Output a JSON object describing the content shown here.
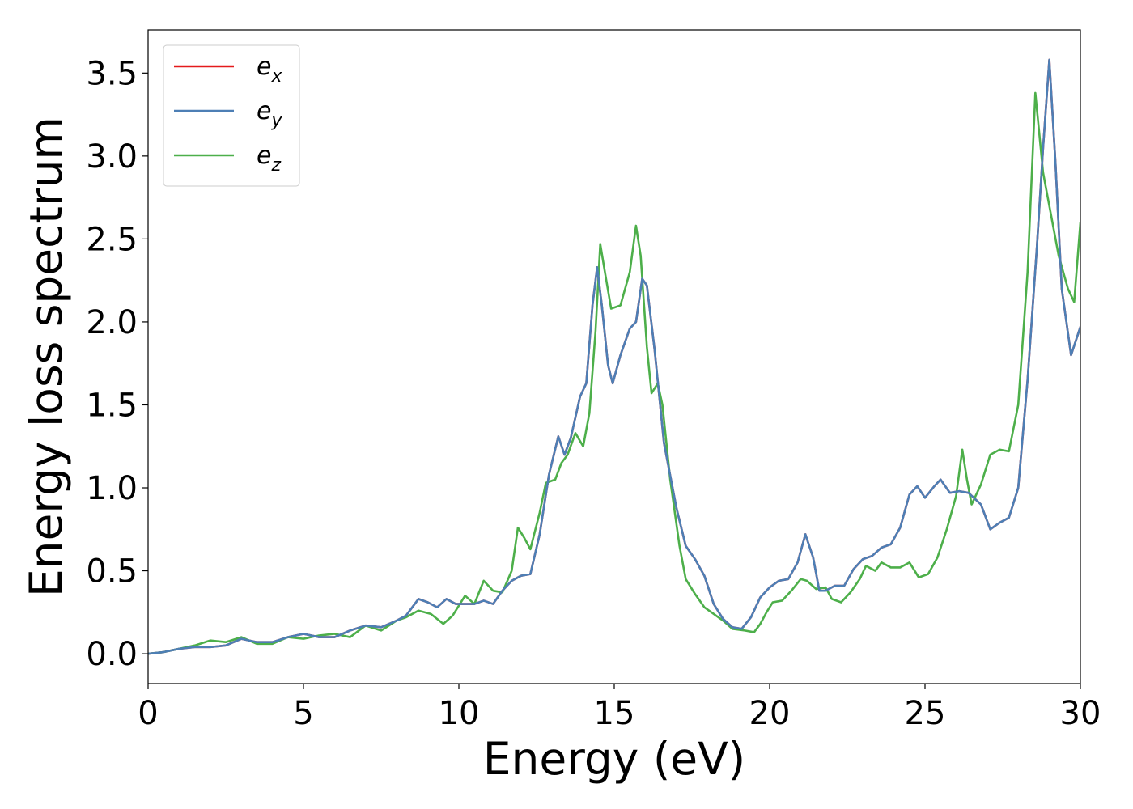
{
  "chart_data": {
    "type": "line",
    "xlabel": "Energy (eV)",
    "ylabel": "Energy loss spectrum",
    "xlim": [
      0,
      30
    ],
    "ylim": [
      -0.18,
      3.76
    ],
    "xticks": [
      "0",
      "5",
      "10",
      "15",
      "20",
      "25",
      "30"
    ],
    "yticks": [
      "0.0",
      "0.5",
      "1.0",
      "1.5",
      "2.0",
      "2.5",
      "3.0",
      "3.5"
    ],
    "grid": false,
    "legend": {
      "position": "top-left"
    },
    "series": [
      {
        "name": "e_x",
        "label_base": "e",
        "label_sub": "x",
        "color": "#e41a1c",
        "points": [
          [
            0,
            0
          ],
          [
            0.5,
            0.01
          ],
          [
            1,
            0.03
          ],
          [
            1.5,
            0.04
          ],
          [
            2,
            0.04
          ],
          [
            2.5,
            0.05
          ],
          [
            3,
            0.09
          ],
          [
            3.5,
            0.07
          ],
          [
            4,
            0.07
          ],
          [
            4.5,
            0.1
          ],
          [
            5,
            0.12
          ],
          [
            5.5,
            0.1
          ],
          [
            6,
            0.1
          ],
          [
            6.5,
            0.14
          ],
          [
            7,
            0.17
          ],
          [
            7.5,
            0.16
          ],
          [
            8,
            0.2
          ],
          [
            8.3,
            0.23
          ],
          [
            8.7,
            0.33
          ],
          [
            9,
            0.31
          ],
          [
            9.3,
            0.28
          ],
          [
            9.6,
            0.33
          ],
          [
            9.9,
            0.3
          ],
          [
            10.2,
            0.3
          ],
          [
            10.5,
            0.3
          ],
          [
            10.8,
            0.32
          ],
          [
            11.1,
            0.3
          ],
          [
            11.4,
            0.38
          ],
          [
            11.7,
            0.44
          ],
          [
            12,
            0.47
          ],
          [
            12.3,
            0.48
          ],
          [
            12.6,
            0.72
          ],
          [
            12.9,
            1.08
          ],
          [
            13.2,
            1.31
          ],
          [
            13.4,
            1.2
          ],
          [
            13.6,
            1.3
          ],
          [
            13.9,
            1.55
          ],
          [
            14.1,
            1.63
          ],
          [
            14.3,
            2.1
          ],
          [
            14.45,
            2.33
          ],
          [
            14.6,
            2.1
          ],
          [
            14.8,
            1.74
          ],
          [
            14.95,
            1.63
          ],
          [
            15.2,
            1.8
          ],
          [
            15.5,
            1.96
          ],
          [
            15.7,
            2.0
          ],
          [
            15.9,
            2.26
          ],
          [
            16.05,
            2.22
          ],
          [
            16.3,
            1.83
          ],
          [
            16.6,
            1.27
          ],
          [
            17,
            0.88
          ],
          [
            17.3,
            0.65
          ],
          [
            17.6,
            0.57
          ],
          [
            17.9,
            0.47
          ],
          [
            18.2,
            0.3
          ],
          [
            18.5,
            0.21
          ],
          [
            18.8,
            0.16
          ],
          [
            19.1,
            0.15
          ],
          [
            19.4,
            0.22
          ],
          [
            19.7,
            0.34
          ],
          [
            20,
            0.4
          ],
          [
            20.3,
            0.44
          ],
          [
            20.6,
            0.45
          ],
          [
            20.9,
            0.55
          ],
          [
            21.15,
            0.72
          ],
          [
            21.4,
            0.58
          ],
          [
            21.6,
            0.38
          ],
          [
            21.8,
            0.38
          ],
          [
            22.1,
            0.41
          ],
          [
            22.4,
            0.41
          ],
          [
            22.7,
            0.51
          ],
          [
            23,
            0.57
          ],
          [
            23.3,
            0.59
          ],
          [
            23.6,
            0.64
          ],
          [
            23.9,
            0.66
          ],
          [
            24.2,
            0.76
          ],
          [
            24.5,
            0.96
          ],
          [
            24.75,
            1.01
          ],
          [
            25,
            0.94
          ],
          [
            25.3,
            1.01
          ],
          [
            25.5,
            1.05
          ],
          [
            25.8,
            0.97
          ],
          [
            26.1,
            0.98
          ],
          [
            26.4,
            0.97
          ],
          [
            26.8,
            0.9
          ],
          [
            27.1,
            0.75
          ],
          [
            27.4,
            0.79
          ],
          [
            27.7,
            0.82
          ],
          [
            28,
            1.0
          ],
          [
            28.3,
            1.65
          ],
          [
            28.6,
            2.45
          ],
          [
            28.8,
            3.05
          ],
          [
            29,
            3.58
          ],
          [
            29.2,
            2.95
          ],
          [
            29.4,
            2.2
          ],
          [
            29.7,
            1.8
          ],
          [
            30,
            1.97
          ]
        ]
      },
      {
        "name": "e_y",
        "label_base": "e",
        "label_sub": "y",
        "color": "#4d7fb5",
        "points": [
          [
            0,
            0
          ],
          [
            0.5,
            0.01
          ],
          [
            1,
            0.03
          ],
          [
            1.5,
            0.04
          ],
          [
            2,
            0.04
          ],
          [
            2.5,
            0.05
          ],
          [
            3,
            0.09
          ],
          [
            3.5,
            0.07
          ],
          [
            4,
            0.07
          ],
          [
            4.5,
            0.1
          ],
          [
            5,
            0.12
          ],
          [
            5.5,
            0.1
          ],
          [
            6,
            0.1
          ],
          [
            6.5,
            0.14
          ],
          [
            7,
            0.17
          ],
          [
            7.5,
            0.16
          ],
          [
            8,
            0.2
          ],
          [
            8.3,
            0.23
          ],
          [
            8.7,
            0.33
          ],
          [
            9,
            0.31
          ],
          [
            9.3,
            0.28
          ],
          [
            9.6,
            0.33
          ],
          [
            9.9,
            0.3
          ],
          [
            10.2,
            0.3
          ],
          [
            10.5,
            0.3
          ],
          [
            10.8,
            0.32
          ],
          [
            11.1,
            0.3
          ],
          [
            11.4,
            0.38
          ],
          [
            11.7,
            0.44
          ],
          [
            12,
            0.47
          ],
          [
            12.3,
            0.48
          ],
          [
            12.6,
            0.72
          ],
          [
            12.9,
            1.08
          ],
          [
            13.2,
            1.31
          ],
          [
            13.4,
            1.2
          ],
          [
            13.6,
            1.3
          ],
          [
            13.9,
            1.55
          ],
          [
            14.1,
            1.63
          ],
          [
            14.3,
            2.1
          ],
          [
            14.45,
            2.33
          ],
          [
            14.6,
            2.1
          ],
          [
            14.8,
            1.74
          ],
          [
            14.95,
            1.63
          ],
          [
            15.2,
            1.8
          ],
          [
            15.5,
            1.96
          ],
          [
            15.7,
            2.0
          ],
          [
            15.9,
            2.26
          ],
          [
            16.05,
            2.22
          ],
          [
            16.3,
            1.83
          ],
          [
            16.6,
            1.27
          ],
          [
            17,
            0.88
          ],
          [
            17.3,
            0.65
          ],
          [
            17.6,
            0.57
          ],
          [
            17.9,
            0.47
          ],
          [
            18.2,
            0.3
          ],
          [
            18.5,
            0.21
          ],
          [
            18.8,
            0.16
          ],
          [
            19.1,
            0.15
          ],
          [
            19.4,
            0.22
          ],
          [
            19.7,
            0.34
          ],
          [
            20,
            0.4
          ],
          [
            20.3,
            0.44
          ],
          [
            20.6,
            0.45
          ],
          [
            20.9,
            0.55
          ],
          [
            21.15,
            0.72
          ],
          [
            21.4,
            0.58
          ],
          [
            21.6,
            0.38
          ],
          [
            21.8,
            0.38
          ],
          [
            22.1,
            0.41
          ],
          [
            22.4,
            0.41
          ],
          [
            22.7,
            0.51
          ],
          [
            23,
            0.57
          ],
          [
            23.3,
            0.59
          ],
          [
            23.6,
            0.64
          ],
          [
            23.9,
            0.66
          ],
          [
            24.2,
            0.76
          ],
          [
            24.5,
            0.96
          ],
          [
            24.75,
            1.01
          ],
          [
            25,
            0.94
          ],
          [
            25.3,
            1.01
          ],
          [
            25.5,
            1.05
          ],
          [
            25.8,
            0.97
          ],
          [
            26.1,
            0.98
          ],
          [
            26.4,
            0.97
          ],
          [
            26.8,
            0.9
          ],
          [
            27.1,
            0.75
          ],
          [
            27.4,
            0.79
          ],
          [
            27.7,
            0.82
          ],
          [
            28,
            1.0
          ],
          [
            28.3,
            1.65
          ],
          [
            28.6,
            2.45
          ],
          [
            28.8,
            3.05
          ],
          [
            29,
            3.58
          ],
          [
            29.2,
            2.95
          ],
          [
            29.4,
            2.2
          ],
          [
            29.7,
            1.8
          ],
          [
            30,
            1.97
          ]
        ]
      },
      {
        "name": "e_z",
        "label_base": "e",
        "label_sub": "z",
        "color": "#4daf4a",
        "points": [
          [
            0,
            0
          ],
          [
            0.5,
            0.01
          ],
          [
            1,
            0.03
          ],
          [
            1.5,
            0.05
          ],
          [
            2,
            0.08
          ],
          [
            2.5,
            0.07
          ],
          [
            3,
            0.1
          ],
          [
            3.5,
            0.06
          ],
          [
            4,
            0.06
          ],
          [
            4.5,
            0.1
          ],
          [
            5,
            0.09
          ],
          [
            5.5,
            0.11
          ],
          [
            6,
            0.12
          ],
          [
            6.5,
            0.1
          ],
          [
            7,
            0.17
          ],
          [
            7.5,
            0.14
          ],
          [
            8,
            0.2
          ],
          [
            8.3,
            0.22
          ],
          [
            8.7,
            0.26
          ],
          [
            9.1,
            0.24
          ],
          [
            9.5,
            0.18
          ],
          [
            9.8,
            0.23
          ],
          [
            10.2,
            0.35
          ],
          [
            10.5,
            0.3
          ],
          [
            10.8,
            0.44
          ],
          [
            11.1,
            0.38
          ],
          [
            11.4,
            0.37
          ],
          [
            11.7,
            0.5
          ],
          [
            11.9,
            0.76
          ],
          [
            12.1,
            0.7
          ],
          [
            12.3,
            0.63
          ],
          [
            12.6,
            0.85
          ],
          [
            12.8,
            1.03
          ],
          [
            13.1,
            1.05
          ],
          [
            13.3,
            1.15
          ],
          [
            13.5,
            1.2
          ],
          [
            13.75,
            1.33
          ],
          [
            14,
            1.25
          ],
          [
            14.2,
            1.45
          ],
          [
            14.4,
            1.95
          ],
          [
            14.55,
            2.47
          ],
          [
            14.7,
            2.3
          ],
          [
            14.9,
            2.08
          ],
          [
            15.2,
            2.1
          ],
          [
            15.5,
            2.3
          ],
          [
            15.7,
            2.58
          ],
          [
            15.85,
            2.4
          ],
          [
            16.05,
            1.85
          ],
          [
            16.2,
            1.57
          ],
          [
            16.4,
            1.63
          ],
          [
            16.55,
            1.5
          ],
          [
            16.8,
            1.05
          ],
          [
            17.1,
            0.65
          ],
          [
            17.3,
            0.45
          ],
          [
            17.6,
            0.36
          ],
          [
            17.9,
            0.28
          ],
          [
            18.2,
            0.24
          ],
          [
            18.5,
            0.2
          ],
          [
            18.8,
            0.15
          ],
          [
            19.2,
            0.14
          ],
          [
            19.5,
            0.13
          ],
          [
            19.7,
            0.18
          ],
          [
            19.9,
            0.25
          ],
          [
            20.1,
            0.31
          ],
          [
            20.4,
            0.32
          ],
          [
            20.7,
            0.38
          ],
          [
            21,
            0.45
          ],
          [
            21.2,
            0.44
          ],
          [
            21.5,
            0.39
          ],
          [
            21.8,
            0.4
          ],
          [
            22,
            0.33
          ],
          [
            22.3,
            0.31
          ],
          [
            22.6,
            0.37
          ],
          [
            22.9,
            0.45
          ],
          [
            23.1,
            0.53
          ],
          [
            23.4,
            0.5
          ],
          [
            23.6,
            0.55
          ],
          [
            23.9,
            0.52
          ],
          [
            24.2,
            0.52
          ],
          [
            24.5,
            0.55
          ],
          [
            24.8,
            0.46
          ],
          [
            25.1,
            0.48
          ],
          [
            25.4,
            0.58
          ],
          [
            25.7,
            0.75
          ],
          [
            26,
            0.95
          ],
          [
            26.2,
            1.23
          ],
          [
            26.35,
            1.05
          ],
          [
            26.5,
            0.9
          ],
          [
            26.8,
            1.02
          ],
          [
            27.1,
            1.2
          ],
          [
            27.4,
            1.23
          ],
          [
            27.7,
            1.22
          ],
          [
            28,
            1.5
          ],
          [
            28.3,
            2.3
          ],
          [
            28.55,
            3.38
          ],
          [
            28.8,
            2.9
          ],
          [
            29,
            2.7
          ],
          [
            29.3,
            2.4
          ],
          [
            29.6,
            2.2
          ],
          [
            29.8,
            2.12
          ],
          [
            30,
            2.6
          ]
        ]
      }
    ]
  }
}
